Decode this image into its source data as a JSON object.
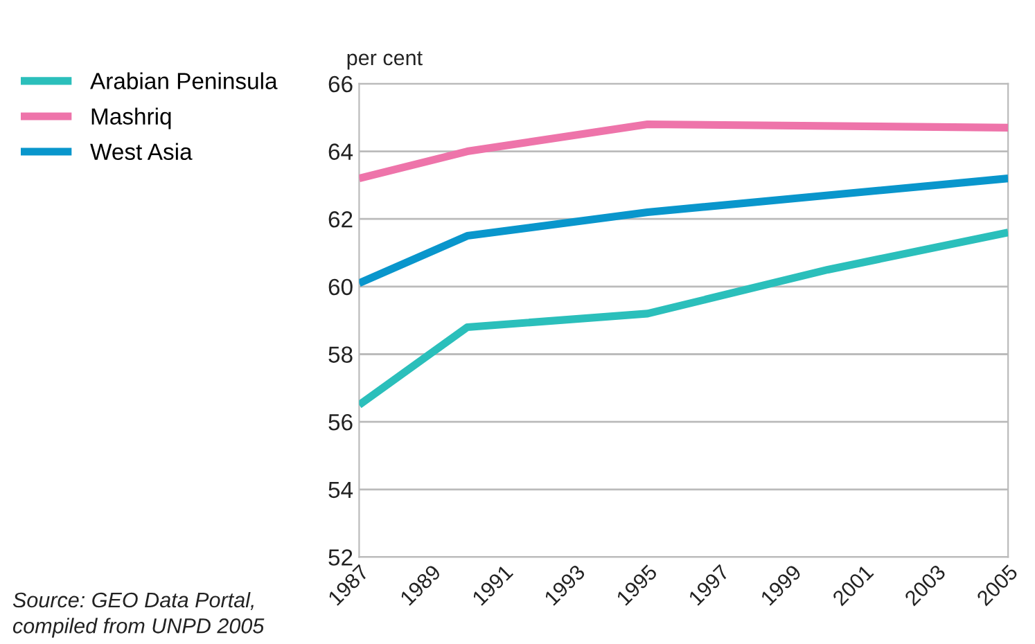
{
  "chart_data": {
    "type": "line",
    "ylabel": "per cent",
    "xlim": [
      1987,
      2005
    ],
    "xticks": [
      1987,
      1989,
      1991,
      1993,
      1995,
      1997,
      1999,
      2001,
      2003,
      2005
    ],
    "ylim": [
      52,
      66
    ],
    "yticks": [
      52,
      54,
      56,
      58,
      60,
      62,
      64,
      66
    ],
    "grid": "y",
    "legend": "top left",
    "marker": "none",
    "line_style": "solid",
    "series": [
      {
        "name": "Arabian Peninsula",
        "color": "#2bbfbb",
        "x": [
          1987,
          1990,
          1995,
          2000,
          2005
        ],
        "values": [
          56.5,
          58.8,
          59.2,
          60.5,
          61.6
        ]
      },
      {
        "name": "Mashriq",
        "color": "#ee74aa",
        "x": [
          1987,
          1990,
          1995,
          2005
        ],
        "values": [
          63.2,
          64.0,
          64.8,
          64.7
        ]
      },
      {
        "name": "West Asia",
        "color": "#0996cc",
        "x": [
          1987,
          1990,
          1995,
          2005
        ],
        "values": [
          60.1,
          61.5,
          62.2,
          63.2
        ]
      }
    ],
    "annotations": [
      "Source: GEO Data Portal,\ncompiled from UNPD 2005"
    ]
  }
}
